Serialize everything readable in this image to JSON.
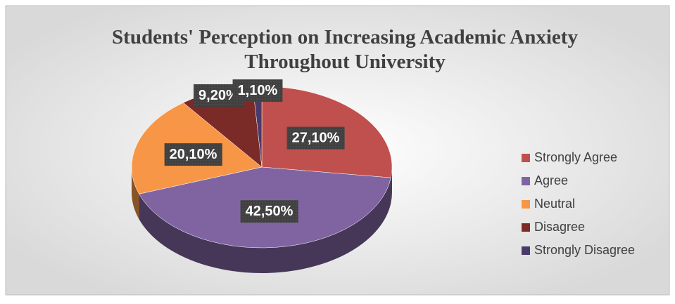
{
  "chart_data": {
    "type": "pie",
    "title": "Students' Perception on Increasing Academic Anxiety Throughout University",
    "categories": [
      "Strongly Agree",
      "Agree",
      "Neutral",
      "Disagree",
      "Strongly Disagree"
    ],
    "values": [
      27.1,
      42.5,
      20.1,
      9.2,
      1.1
    ],
    "value_labels": [
      "27,10%",
      "42,50%",
      "20,10%",
      "9,20%",
      "1,10%"
    ],
    "colors": [
      "#c0504d",
      "#8064a2",
      "#f79646",
      "#7a2a27",
      "#4a3a6a"
    ],
    "legend": "right"
  }
}
